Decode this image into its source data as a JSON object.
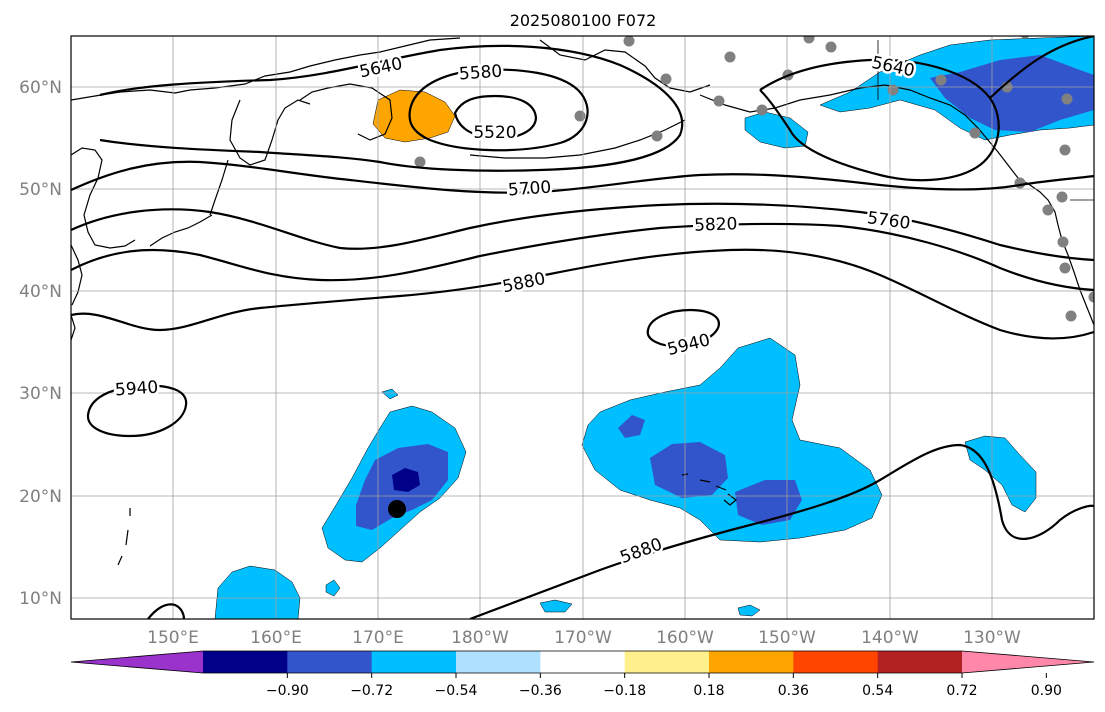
{
  "title": "2025080100 F072",
  "lat_labels": [
    "60°N",
    "50°N",
    "40°N",
    "30°N",
    "20°N",
    "10°N"
  ],
  "lon_labels": [
    "150°E",
    "160°E",
    "170°E",
    "180°W",
    "170°W",
    "160°W",
    "150°W",
    "140°W",
    "130°W"
  ],
  "contour_labels": {
    "c5640a": "5640",
    "c5580": "5580",
    "c5520": "5520",
    "c5640b": "5640",
    "c5700": "5700",
    "c5820": "5820",
    "c5760": "5760",
    "c5880a": "5880",
    "c5940a": "5940",
    "c5940b": "5940",
    "c5880b": "5880"
  },
  "colorbar": {
    "ticks": [
      "−0.90",
      "−0.72",
      "−0.54",
      "−0.36",
      "−0.18",
      "0.18",
      "0.36",
      "0.54",
      "0.72",
      "0.90"
    ],
    "colors": [
      "#9933cc",
      "#000088",
      "#3355cc",
      "#00bfff",
      "#b0e0ff",
      "#ffffff",
      "#fff08c",
      "#ffa500",
      "#ff4500",
      "#b22222",
      "#ff88aa"
    ]
  },
  "colors": {
    "shade_light": "#00bfff",
    "shade_mid": "#3355cc",
    "shade_dark": "#000088",
    "shade_orange": "#ffa500",
    "station_marker": "#808080"
  }
}
